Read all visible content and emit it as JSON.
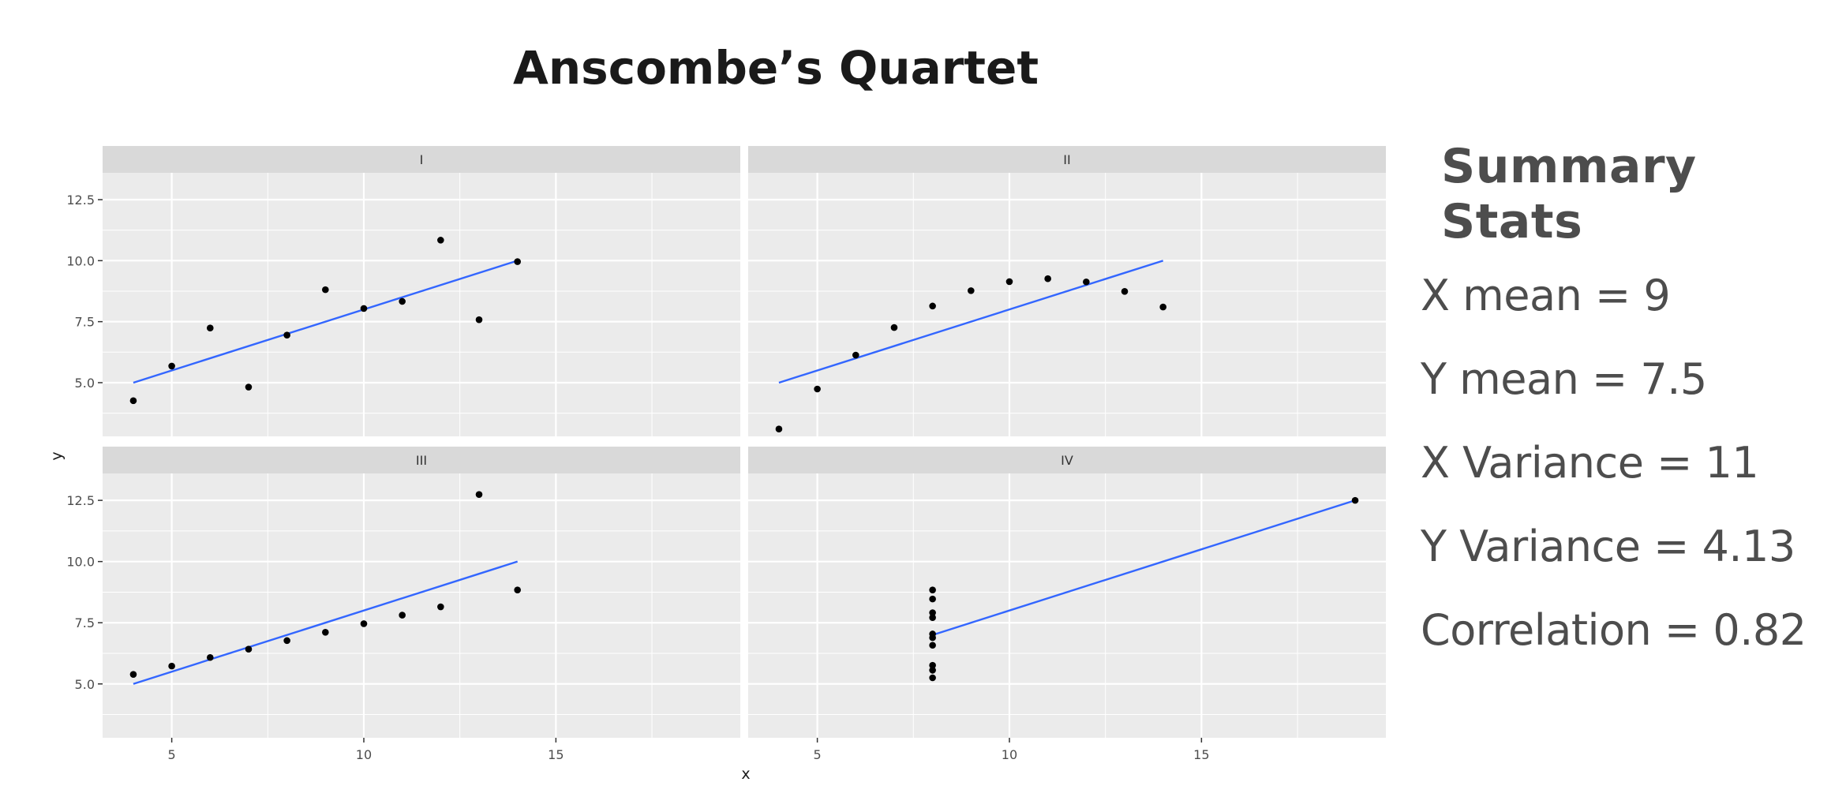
{
  "title": "Anscombe’s Quartet",
  "summary": {
    "heading": "Summary Stats",
    "lines": [
      "X mean = 9",
      "Y mean = 7.5",
      "X Variance = 11",
      "Y Variance = 4.13",
      "Correlation = 0.82"
    ]
  },
  "colors": {
    "panel_bg": "#ebebeb",
    "strip_bg": "#d9d9d9",
    "grid": "#ffffff",
    "point": "#000000",
    "fit_line": "#3366ff",
    "tick_text": "#4d4d4d"
  },
  "chart_data": {
    "type": "scatter",
    "xlabel": "x",
    "ylabel": "y",
    "xlim": [
      3.2,
      19.8
    ],
    "ylim": [
      2.8,
      13.6
    ],
    "x_ticks": [
      5,
      10,
      15
    ],
    "x_tick_labels": [
      "5",
      "10",
      "15"
    ],
    "y_ticks": [
      5.0,
      7.5,
      10.0,
      12.5
    ],
    "y_tick_labels": [
      "5.0",
      "7.5",
      "10.0",
      "12.5"
    ],
    "grid": true,
    "panels": [
      {
        "name": "I",
        "x": [
          4,
          5,
          6,
          7,
          8,
          9,
          10,
          11,
          12,
          13,
          14
        ],
        "y": [
          4.26,
          5.68,
          7.24,
          4.82,
          6.95,
          8.81,
          8.04,
          8.33,
          10.84,
          7.58,
          9.96
        ],
        "fit": {
          "x": [
            4,
            14
          ],
          "y": [
            5.0,
            10.0
          ]
        }
      },
      {
        "name": "II",
        "x": [
          4,
          5,
          6,
          7,
          8,
          9,
          10,
          11,
          12,
          13,
          14
        ],
        "y": [
          3.1,
          4.74,
          6.13,
          7.26,
          8.14,
          8.77,
          9.14,
          9.26,
          9.13,
          8.74,
          8.1
        ],
        "fit": {
          "x": [
            4,
            14
          ],
          "y": [
            5.0,
            10.0
          ]
        }
      },
      {
        "name": "III",
        "x": [
          4,
          5,
          6,
          7,
          8,
          9,
          10,
          11,
          12,
          13,
          14
        ],
        "y": [
          5.39,
          5.73,
          6.08,
          6.42,
          6.77,
          7.11,
          7.46,
          7.81,
          8.15,
          12.74,
          8.84
        ],
        "fit": {
          "x": [
            4,
            14
          ],
          "y": [
            5.0,
            10.0
          ]
        }
      },
      {
        "name": "IV",
        "x": [
          8,
          8,
          8,
          8,
          8,
          8,
          8,
          8,
          8,
          8,
          19
        ],
        "y": [
          5.25,
          5.56,
          5.76,
          6.58,
          6.89,
          7.04,
          7.71,
          7.91,
          8.47,
          8.84,
          12.5
        ],
        "fit": {
          "x": [
            8,
            19
          ],
          "y": [
            7.0,
            12.5
          ]
        }
      }
    ]
  }
}
